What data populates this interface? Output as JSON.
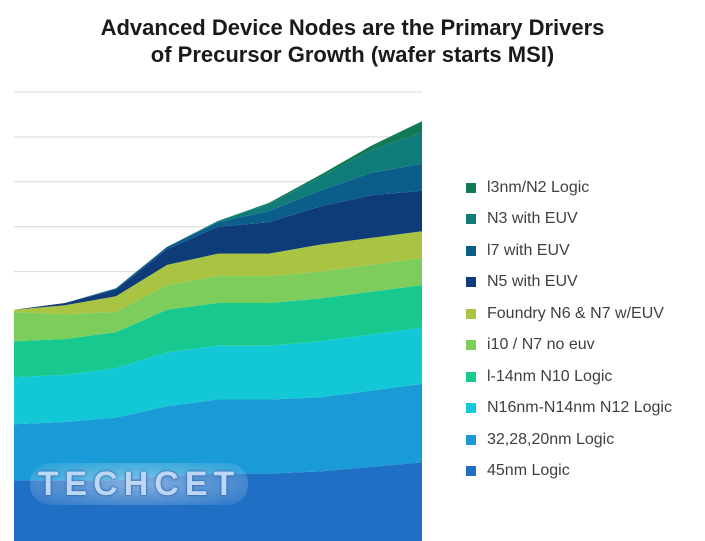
{
  "title": {
    "line1": "Advanced Device Nodes are the Primary Drivers",
    "line2": "of Precursor Growth (wafer starts MSI)"
  },
  "watermark": {
    "text": "TECHCET"
  },
  "chart_data": {
    "type": "area",
    "stacked": true,
    "title": "Advanced Device Nodes are the Primary Drivers of Precursor Growth (wafer starts MSI)",
    "xlabel": "",
    "ylabel": "",
    "x_points": 9,
    "grid": true,
    "gridline_count": 10,
    "ylim": [
      0,
      100
    ],
    "legend_position": "right",
    "series": [
      {
        "name": "45nm Logic",
        "color": "#1f6fc5",
        "values": [
          13.5,
          13.5,
          13.5,
          14.5,
          15,
          15,
          15.5,
          16.5,
          17.5
        ]
      },
      {
        "name": "32,28,20nm Logic",
        "color": "#1a9ad6",
        "values": [
          12.5,
          13,
          14,
          15.5,
          16.5,
          16.5,
          16.5,
          17,
          17.5
        ]
      },
      {
        "name": "N16nm-N14nm N12 Logic",
        "color": "#12c8d6",
        "values": [
          10.5,
          10.5,
          11,
          12,
          12,
          12,
          12.5,
          12.5,
          12.5
        ]
      },
      {
        "name": "l-14nm N10 Logic",
        "color": "#17c98e",
        "values": [
          8,
          8,
          8,
          9.5,
          9.5,
          9.5,
          9.5,
          9.5,
          9.5
        ]
      },
      {
        "name": "i10 / N7 no euv",
        "color": "#7ccd5c",
        "values": [
          6.5,
          5.5,
          4.5,
          5.5,
          6,
          6,
          6,
          6,
          6
        ]
      },
      {
        "name": "Foundry N6 & N7 w/EUV",
        "color": "#a9c442",
        "values": [
          0.5,
          2,
          3.5,
          4.5,
          5,
          5,
          6,
          6,
          6
        ]
      },
      {
        "name": "N5 with EUV",
        "color": "#0e3c78",
        "values": [
          0,
          0.5,
          1.5,
          3.5,
          6,
          7,
          8.5,
          9.5,
          9
        ]
      },
      {
        "name": "l7 with EUV",
        "color": "#0c5e8a",
        "values": [
          0,
          0,
          0.3,
          0.5,
          1,
          2.5,
          3.5,
          5,
          6
        ]
      },
      {
        "name": "N3 with EUV",
        "color": "#0f7c7a",
        "values": [
          0,
          0,
          0,
          0,
          0.3,
          1.5,
          3,
          5,
          7
        ]
      },
      {
        "name": "l3nm/N2 Logic",
        "color": "#127a55",
        "values": [
          0,
          0,
          0,
          0,
          0,
          0.3,
          0.5,
          1,
          2.5
        ]
      }
    ]
  }
}
